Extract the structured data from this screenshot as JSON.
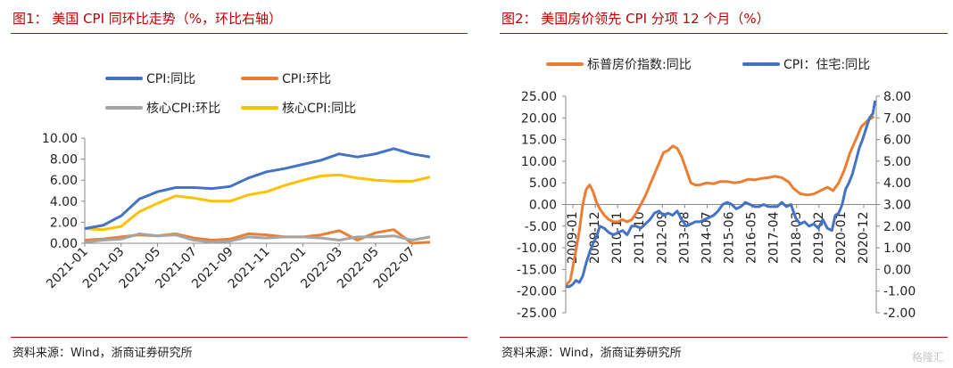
{
  "panels": [
    {
      "title": "图1： 美国 CPI 同环比走势（%，环比右轴）",
      "source": "资料来源：Wind，浙商证券研究所"
    },
    {
      "title": "图2： 美国房价领先 CPI 分项 12 个月（%）",
      "source": "资料来源：Wind，浙商证券研究所"
    }
  ],
  "watermark": "格隆汇",
  "chart_data": [
    {
      "type": "line",
      "title": "美国 CPI 同环比走势（%，环比右轴）",
      "x": [
        "2021-01",
        "2021-02",
        "2021-03",
        "2021-04",
        "2021-05",
        "2021-06",
        "2021-07",
        "2021-08",
        "2021-09",
        "2021-10",
        "2021-11",
        "2021-12",
        "2022-01",
        "2022-02",
        "2022-03",
        "2022-04",
        "2022-05",
        "2022-06",
        "2022-07",
        "2022-08"
      ],
      "x_tick_labels": [
        "2021-01",
        "2021-03",
        "2021-05",
        "2021-07",
        "2021-09",
        "2021-11",
        "2022-01",
        "2022-03",
        "2022-05",
        "2022-07"
      ],
      "y_tick_labels": [
        "0.00",
        "2.00",
        "4.00",
        "6.00",
        "8.00",
        "10.00"
      ],
      "ylim": [
        0,
        10
      ],
      "grid": false,
      "legend_position": "top",
      "series": [
        {
          "name": "CPI:同比",
          "color": "#4472c4",
          "values": [
            1.4,
            1.7,
            2.6,
            4.2,
            4.9,
            5.3,
            5.3,
            5.2,
            5.4,
            6.2,
            6.8,
            7.1,
            7.5,
            7.9,
            8.5,
            8.2,
            8.5,
            9.0,
            8.5,
            8.2
          ]
        },
        {
          "name": "CPI:环比",
          "color": "#ed7d31",
          "values": [
            0.3,
            0.4,
            0.6,
            0.8,
            0.7,
            0.9,
            0.5,
            0.3,
            0.4,
            0.9,
            0.8,
            0.6,
            0.6,
            0.8,
            1.2,
            0.3,
            1.0,
            1.3,
            0.0,
            0.1
          ]
        },
        {
          "name": "核心CPI:环比",
          "color": "#a5a5a5",
          "values": [
            0.1,
            0.3,
            0.4,
            0.9,
            0.7,
            0.8,
            0.3,
            0.1,
            0.2,
            0.6,
            0.5,
            0.6,
            0.6,
            0.5,
            0.3,
            0.6,
            0.6,
            0.7,
            0.3,
            0.6
          ]
        },
        {
          "name": "核心CPI:同比",
          "color": "#ffc000",
          "values": [
            1.4,
            1.3,
            1.6,
            3.0,
            3.8,
            4.5,
            4.3,
            4.0,
            4.0,
            4.6,
            4.9,
            5.5,
            6.0,
            6.4,
            6.5,
            6.2,
            6.0,
            5.9,
            5.9,
            6.3
          ]
        }
      ]
    },
    {
      "type": "line",
      "title": "美国房价领先 CPI 分项 12 个月（%）",
      "x_tick_labels": [
        "2009-01",
        "2009-12",
        "2010-11",
        "2011-10",
        "2012-09",
        "2013-08",
        "2014-07",
        "2015-06",
        "2016-05",
        "2017-04",
        "2018-03",
        "2019-02",
        "2020-01",
        "2020-12"
      ],
      "x_range": [
        2009.0,
        2022.65
      ],
      "y_left_tick_labels": [
        "-25.00",
        "-20.00",
        "-15.00",
        "-10.00",
        "-5.00",
        "0.00",
        "5.00",
        "10.00",
        "15.00",
        "20.00",
        "25.00"
      ],
      "y_right_tick_labels": [
        "-2.00",
        "-1.00",
        "0.00",
        "1.00",
        "2.00",
        "3.00",
        "4.00",
        "5.00",
        "6.00",
        "7.00",
        "8.00"
      ],
      "ylim_left": [
        -25,
        25
      ],
      "ylim_right": [
        -2,
        8
      ],
      "grid": false,
      "legend_position": "top",
      "series": [
        {
          "name": "标普房价指数:同比",
          "color": "#ed7d31",
          "axis": "left",
          "x": [
            2009.0,
            2009.2,
            2009.4,
            2009.6,
            2009.75,
            2009.9,
            2010.05,
            2010.2,
            2010.35,
            2010.5,
            2010.7,
            2010.9,
            2011.1,
            2011.3,
            2011.5,
            2011.7,
            2011.9,
            2012.1,
            2012.3,
            2012.5,
            2012.7,
            2012.9,
            2013.1,
            2013.3,
            2013.5,
            2013.7,
            2013.9,
            2014.1,
            2014.3,
            2014.5,
            2014.7,
            2014.9,
            2015.2,
            2015.5,
            2015.8,
            2016.1,
            2016.4,
            2016.7,
            2017.0,
            2017.3,
            2017.6,
            2017.9,
            2018.2,
            2018.5,
            2018.8,
            2019.0,
            2019.3,
            2019.6,
            2019.9,
            2020.2,
            2020.5,
            2020.75,
            2021.0,
            2021.25,
            2021.5,
            2021.75,
            2022.0,
            2022.3,
            2022.55
          ],
          "values": [
            -18.8,
            -17.5,
            -12.0,
            -6.0,
            0.0,
            3.5,
            4.5,
            3.0,
            0.5,
            -1.0,
            -2.5,
            -3.5,
            -4.0,
            -4.0,
            -3.5,
            -4.0,
            -3.5,
            -2.0,
            0.0,
            2.0,
            4.5,
            7.0,
            9.5,
            12.0,
            12.5,
            13.5,
            13.0,
            11.0,
            8.0,
            5.0,
            4.5,
            4.5,
            5.0,
            4.8,
            5.3,
            5.3,
            5.0,
            5.2,
            5.8,
            5.7,
            6.0,
            6.2,
            6.5,
            6.2,
            5.2,
            3.8,
            2.5,
            2.2,
            2.4,
            3.2,
            4.0,
            3.2,
            5.0,
            8.0,
            12.0,
            15.0,
            18.0,
            19.5,
            20.3
          ]
        },
        {
          "name": "CPI：住宅:同比",
          "color": "#4472c4",
          "axis": "right",
          "x": [
            2009.0,
            2009.15,
            2009.3,
            2009.45,
            2009.6,
            2009.75,
            2009.9,
            2010.05,
            2010.2,
            2010.35,
            2010.5,
            2010.7,
            2010.9,
            2011.1,
            2011.3,
            2011.5,
            2011.7,
            2011.9,
            2012.1,
            2012.3,
            2012.5,
            2012.7,
            2012.9,
            2013.1,
            2013.3,
            2013.5,
            2013.7,
            2013.9,
            2014.1,
            2014.3,
            2014.5,
            2014.7,
            2014.9,
            2015.1,
            2015.3,
            2015.5,
            2015.7,
            2015.9,
            2016.1,
            2016.3,
            2016.5,
            2016.7,
            2016.9,
            2017.1,
            2017.3,
            2017.5,
            2017.7,
            2017.9,
            2018.1,
            2018.3,
            2018.5,
            2018.7,
            2018.9,
            2019.1,
            2019.3,
            2019.5,
            2019.7,
            2019.9,
            2020.1,
            2020.3,
            2020.5,
            2020.7,
            2020.85,
            2021.0,
            2021.15,
            2021.3,
            2021.45,
            2021.6,
            2021.75,
            2021.9,
            2022.05,
            2022.2,
            2022.35,
            2022.5,
            2022.6
          ],
          "values": [
            -0.8,
            -0.8,
            -0.7,
            -0.5,
            -0.6,
            -0.3,
            0.3,
            0.8,
            1.2,
            1.5,
            2.0,
            1.9,
            1.7,
            1.6,
            1.7,
            1.8,
            1.6,
            2.0,
            2.0,
            1.9,
            2.1,
            2.3,
            2.6,
            2.7,
            2.5,
            2.6,
            2.5,
            2.7,
            2.3,
            2.0,
            2.1,
            2.2,
            2.2,
            2.3,
            2.4,
            2.5,
            2.7,
            3.0,
            3.1,
            3.0,
            2.8,
            2.9,
            3.1,
            3.0,
            2.9,
            2.9,
            3.0,
            2.9,
            2.9,
            2.9,
            3.1,
            2.9,
            3.0,
            2.4,
            2.1,
            2.2,
            2.0,
            2.1,
            1.9,
            2.3,
            1.9,
            1.8,
            2.5,
            2.6,
            3.0,
            3.7,
            4.0,
            4.4,
            5.0,
            5.6,
            6.0,
            6.5,
            7.0,
            7.2,
            7.8
          ]
        }
      ]
    }
  ]
}
